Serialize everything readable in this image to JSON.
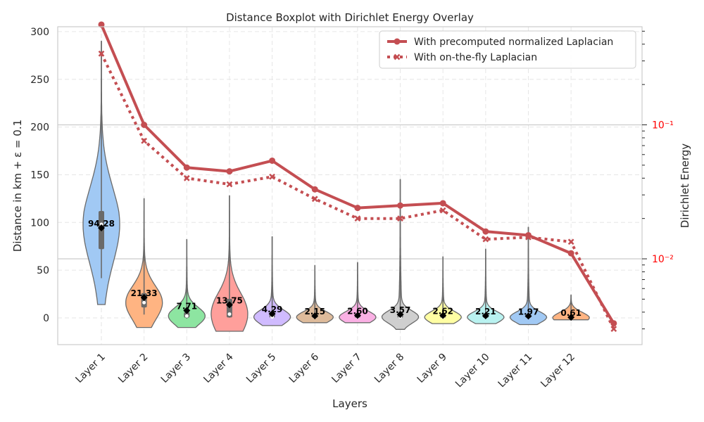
{
  "chart_data": {
    "type": "violin",
    "title": "Distance Boxplot with Dirichlet Energy Overlay",
    "xlabel": "Layers",
    "ylabel": "Distance in km + ε = 0.1",
    "y2label": "Dirichlet Energy",
    "ylim": [
      -28,
      302
    ],
    "y_ticks": [
      0,
      50,
      100,
      150,
      200,
      250,
      300
    ],
    "y2_scale": "log",
    "y2_major_ticks": [
      {
        "value": 0.1,
        "label": "10⁻¹"
      },
      {
        "value": 0.01,
        "label": "10⁻²"
      }
    ],
    "grid": true,
    "legend_position": "top-right",
    "categories": [
      "Layer 1",
      "Layer 2",
      "Layer 3",
      "Layer 4",
      "Layer 5",
      "Layer 6",
      "Layer 7",
      "Layer 8",
      "Layer 9",
      "Layer 10",
      "Layer 11",
      "Layer 12"
    ],
    "violins": [
      {
        "mean": 94.28,
        "mean_label": "94.28",
        "min": 14,
        "max": 290,
        "q1": 72,
        "median": 98,
        "q3": 112,
        "color": "#a1c9f4"
      },
      {
        "mean": 21.33,
        "mean_label": "21.33",
        "min": -10,
        "max": 125,
        "q1": 11,
        "median": 16,
        "q3": 26,
        "color": "#ffb482"
      },
      {
        "mean": 7.71,
        "mean_label": "7.71",
        "min": -10,
        "max": 82,
        "q1": 0.3,
        "median": 2,
        "q3": 6,
        "color": "#8de5a1"
      },
      {
        "mean": 13.75,
        "mean_label": "13.75",
        "min": -14,
        "max": 128,
        "q1": 0.5,
        "median": 4,
        "q3": 20,
        "color": "#ff9f9b"
      },
      {
        "mean": 4.29,
        "mean_label": "4.29",
        "min": -8,
        "max": 85,
        "q1": 0.3,
        "median": 1,
        "q3": 4,
        "color": "#d0bbff"
      },
      {
        "mean": 2.15,
        "mean_label": "2.15",
        "min": -5,
        "max": 55,
        "q1": 0.2,
        "median": 0.8,
        "q3": 2,
        "color": "#debb9b"
      },
      {
        "mean": 2.6,
        "mean_label": "2.60",
        "min": -5,
        "max": 58,
        "q1": 0.2,
        "median": 0.8,
        "q3": 2.5,
        "color": "#fab0e4"
      },
      {
        "mean": 3.57,
        "mean_label": "3.57",
        "min": -12,
        "max": 145,
        "q1": 0.2,
        "median": 1,
        "q3": 3,
        "color": "#cfcfcf"
      },
      {
        "mean": 2.62,
        "mean_label": "2.62",
        "min": -6,
        "max": 64,
        "q1": 0.2,
        "median": 0.8,
        "q3": 2.5,
        "color": "#fffea3"
      },
      {
        "mean": 2.21,
        "mean_label": "2.21",
        "min": -6,
        "max": 72,
        "q1": 0.2,
        "median": 0.8,
        "q3": 2,
        "color": "#b9f2f0"
      },
      {
        "mean": 1.97,
        "mean_label": "1.97",
        "min": -7,
        "max": 95,
        "q1": 0.2,
        "median": 0.7,
        "q3": 1.8,
        "color": "#a1c9f4"
      },
      {
        "mean": 0.61,
        "mean_label": "0.61",
        "min": -2,
        "max": 24,
        "q1": 0.1,
        "median": 0.3,
        "q3": 0.8,
        "color": "#ffb482"
      }
    ],
    "energy_series": [
      {
        "name": "With precomputed normalized Laplacian",
        "style": "solid",
        "marker": "circle",
        "color": "#c44e52",
        "values": [
          0.56,
          0.1,
          0.048,
          0.045,
          0.054,
          0.033,
          0.024,
          0.025,
          0.026,
          0.016,
          0.015,
          0.011,
          0.0033
        ]
      },
      {
        "name": "With on-the-fly Laplacian",
        "style": "dotted",
        "marker": "x",
        "color": "#c44e52",
        "values": [
          0.34,
          0.076,
          0.04,
          0.036,
          0.041,
          0.028,
          0.02,
          0.02,
          0.023,
          0.014,
          0.0145,
          0.0134,
          0.003
        ]
      }
    ],
    "colors": {
      "energy": "#c44e52",
      "right_axis": "#ff0000"
    }
  }
}
